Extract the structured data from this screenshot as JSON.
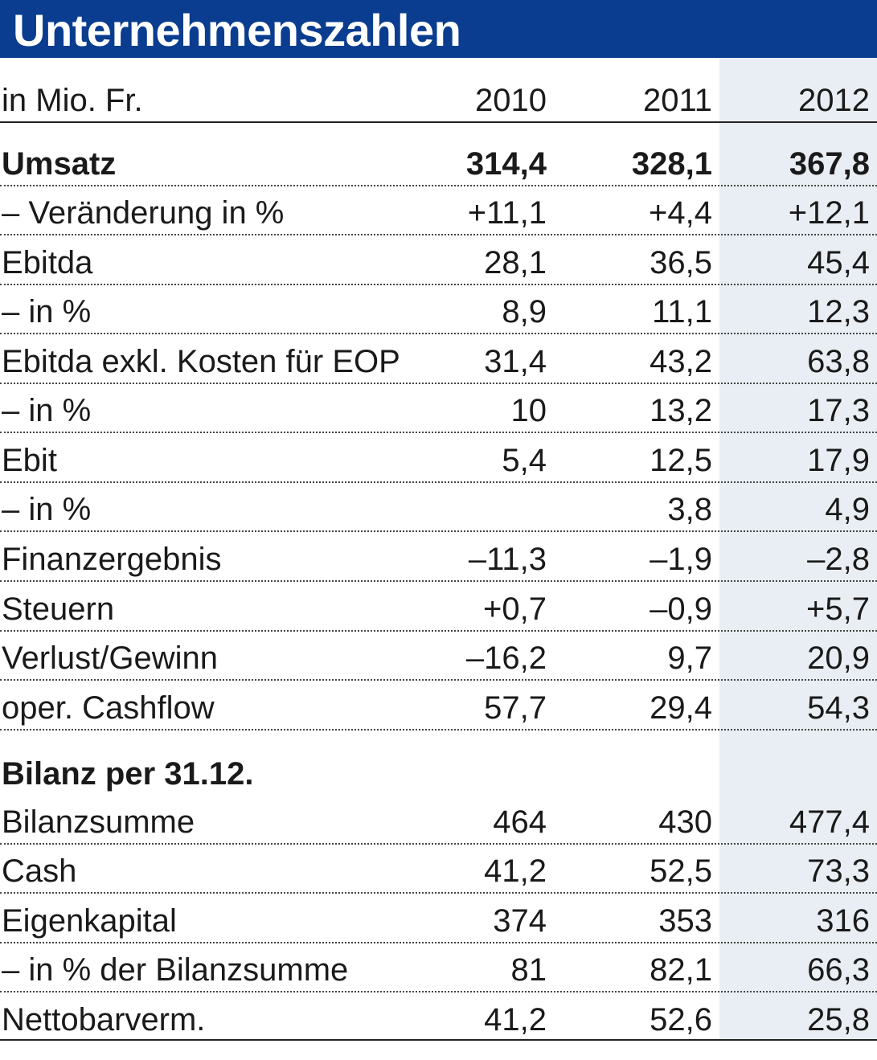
{
  "title": "Unternehmenszahlen",
  "header": {
    "unit": "in Mio. Fr.",
    "years": [
      "2010",
      "2011",
      "2012"
    ]
  },
  "rows": [
    {
      "label": "Umsatz",
      "values": [
        "314,4",
        "328,1",
        "367,8"
      ],
      "bold": true,
      "rule": true
    },
    {
      "label": "– Veränderung in %",
      "values": [
        "+11,1",
        "+4,4",
        "+12,1"
      ],
      "bold": false,
      "rule": true
    },
    {
      "label": "Ebitda",
      "values": [
        "28,1",
        "36,5",
        "45,4"
      ],
      "bold": false,
      "rule": true
    },
    {
      "label": "– in %",
      "values": [
        "8,9",
        "11,1",
        "12,3"
      ],
      "bold": false,
      "rule": true
    },
    {
      "label": "Ebitda exkl. Kosten für EOP",
      "values": [
        "31,4",
        "43,2",
        "63,8"
      ],
      "bold": false,
      "rule": true
    },
    {
      "label": "– in %",
      "values": [
        "10",
        "13,2",
        "17,3"
      ],
      "bold": false,
      "rule": true
    },
    {
      "label": "Ebit",
      "values": [
        "5,4",
        "12,5",
        "17,9"
      ],
      "bold": false,
      "rule": true
    },
    {
      "label": "– in %",
      "values": [
        "",
        "3,8",
        "4,9"
      ],
      "bold": false,
      "rule": true
    },
    {
      "label": "Finanzergebnis",
      "values": [
        "–11,3",
        "–1,9",
        "–2,8"
      ],
      "bold": false,
      "rule": true
    },
    {
      "label": "Steuern",
      "values": [
        "+0,7",
        "–0,9",
        "+5,7"
      ],
      "bold": false,
      "rule": true
    },
    {
      "label": "Verlust/Gewinn",
      "values": [
        "–16,2",
        "9,7",
        "20,9"
      ],
      "bold": false,
      "rule": true
    },
    {
      "label": "oper. Cashflow",
      "values": [
        "57,7",
        "29,4",
        "54,3"
      ],
      "bold": false,
      "rule": true
    },
    {
      "label": "Bilanz per 31.12.",
      "values": [
        "",
        "",
        ""
      ],
      "bold": true,
      "rule": false
    },
    {
      "label": "Bilanzsumme",
      "values": [
        "464",
        "430",
        "477,4"
      ],
      "bold": false,
      "rule": true
    },
    {
      "label": "Cash",
      "values": [
        "41,2",
        "52,5",
        "73,3"
      ],
      "bold": false,
      "rule": true
    },
    {
      "label": "Eigenkapital",
      "values": [
        "374",
        "353",
        "316"
      ],
      "bold": false,
      "rule": true
    },
    {
      "label": "– in % der Bilanzsumme",
      "values": [
        "81",
        "82,1",
        "66,3"
      ],
      "bold": false,
      "rule": true
    },
    {
      "label": "Nettobarverm.",
      "values": [
        "41,2",
        "52,6",
        "25,8"
      ],
      "bold": false,
      "rule": false
    }
  ],
  "colors": {
    "title_bar": "#0a3d8f",
    "highlight_column": "#e9eef4"
  }
}
